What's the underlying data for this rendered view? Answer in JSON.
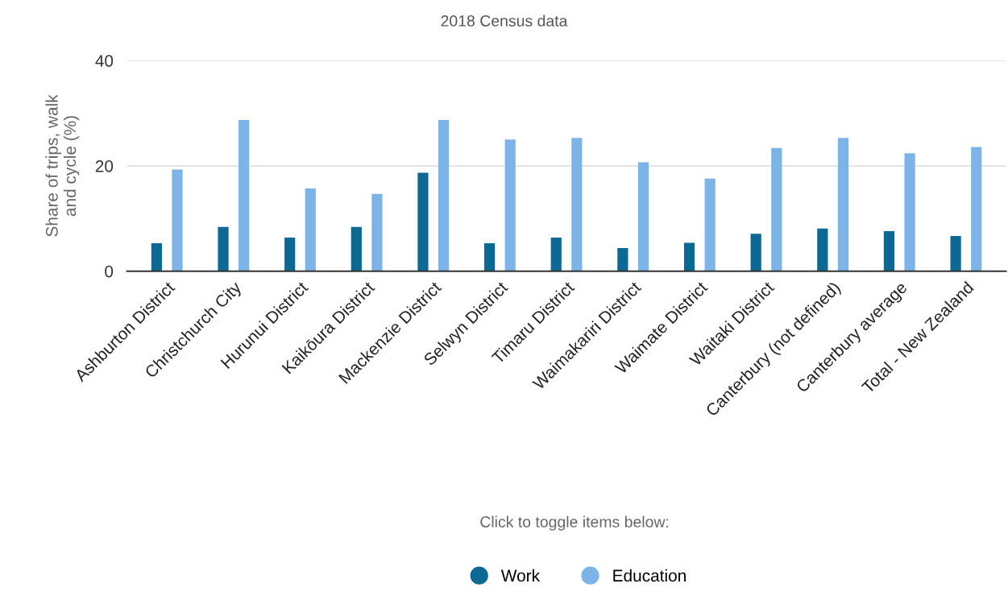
{
  "chart_data": {
    "type": "bar",
    "title": "2018 Census data",
    "ylabel": "Share of trips, walk\nand cycle (%)",
    "categories": [
      "Ashburton District",
      "Christchurch City",
      "Hurunui District",
      "Kaikōura District",
      "Mackenzie District",
      "Selwyn District",
      "Timaru District",
      "Waimakariri District",
      "Waimate District",
      "Waitaki District",
      "Canterbury (not defined)",
      "Canterbury average",
      "Total - New Zealand"
    ],
    "series": [
      {
        "name": "Work",
        "color": "#0b6994",
        "values": [
          5.3,
          8.4,
          6.4,
          8.4,
          18.7,
          5.3,
          6.4,
          4.4,
          5.4,
          7.1,
          8.1,
          7.6,
          6.7
        ]
      },
      {
        "name": "Education",
        "color": "#7cb4e8",
        "values": [
          19.3,
          28.7,
          15.7,
          14.7,
          28.7,
          25.0,
          25.3,
          20.7,
          17.6,
          23.4,
          25.3,
          22.4,
          23.6
        ]
      }
    ],
    "ylim": [
      0,
      40
    ],
    "yticks": [
      0,
      20,
      40
    ],
    "grid": "y",
    "legend": "bottom",
    "marker": "circle",
    "annotations": [
      "Click to toggle items below:"
    ]
  }
}
